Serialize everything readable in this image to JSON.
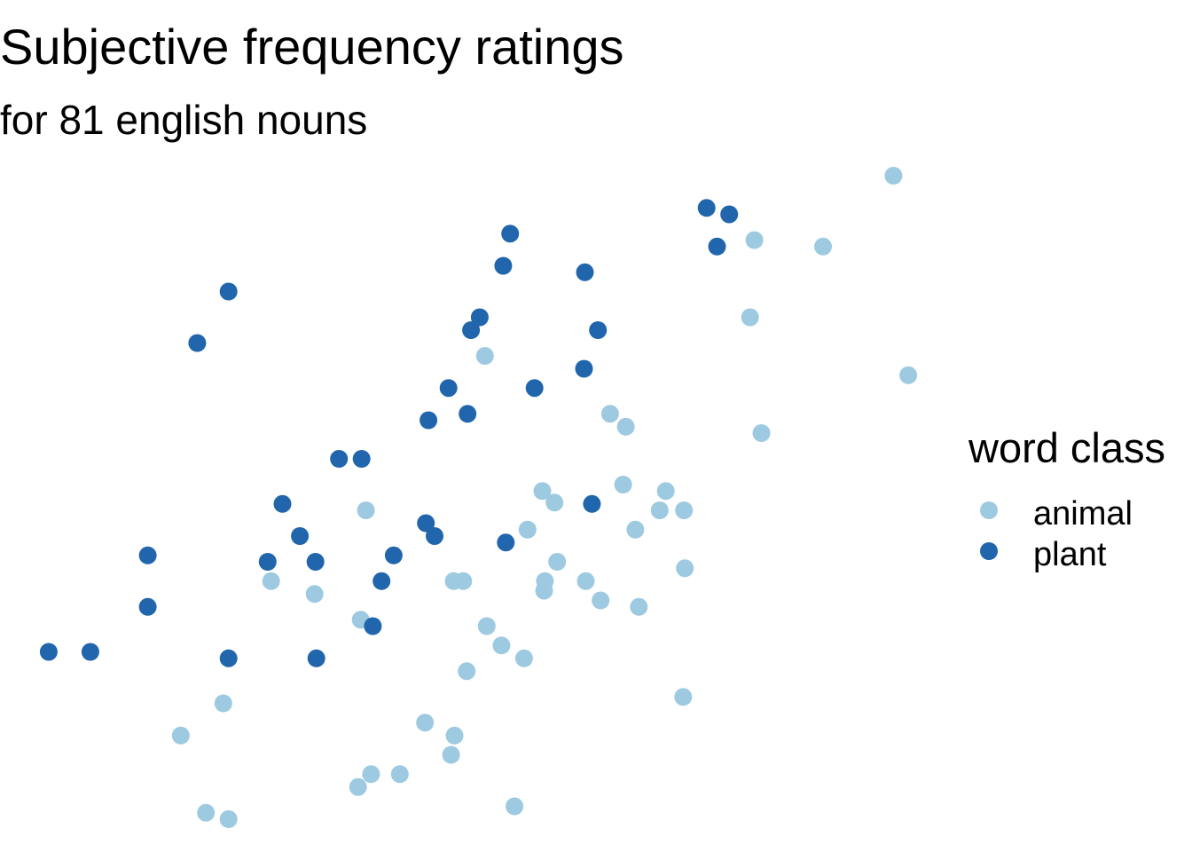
{
  "chart_data": {
    "type": "scatter",
    "title": "Subjective frequency ratings",
    "subtitle": "for 81 english nouns",
    "xlabel": "",
    "ylabel": "",
    "axes_visible": false,
    "grid": false,
    "legend": {
      "title": "word class",
      "position": "right",
      "entries": [
        "animal",
        "plant"
      ]
    },
    "colors": {
      "animal": "#9ecae1",
      "plant": "#2166ac"
    },
    "xlim": [
      0,
      1
    ],
    "ylim": [
      0,
      1
    ],
    "series": [
      {
        "name": "animal",
        "points": [
          [
            0.979,
            1.0
          ],
          [
            0.819,
            0.9
          ],
          [
            0.898,
            0.89
          ],
          [
            0.814,
            0.78
          ],
          [
            0.996,
            0.69
          ],
          [
            0.827,
            0.6
          ],
          [
            0.509,
            0.72
          ],
          [
            0.653,
            0.63
          ],
          [
            0.671,
            0.61
          ],
          [
            0.575,
            0.51
          ],
          [
            0.589,
            0.492
          ],
          [
            0.668,
            0.52
          ],
          [
            0.717,
            0.51
          ],
          [
            0.71,
            0.48
          ],
          [
            0.738,
            0.48
          ],
          [
            0.372,
            0.48
          ],
          [
            0.558,
            0.45
          ],
          [
            0.682,
            0.45
          ],
          [
            0.592,
            0.4
          ],
          [
            0.739,
            0.39
          ],
          [
            0.578,
            0.37
          ],
          [
            0.577,
            0.355
          ],
          [
            0.625,
            0.37
          ],
          [
            0.263,
            0.37
          ],
          [
            0.473,
            0.37
          ],
          [
            0.484,
            0.37
          ],
          [
            0.313,
            0.35
          ],
          [
            0.642,
            0.34
          ],
          [
            0.686,
            0.33
          ],
          [
            0.366,
            0.31
          ],
          [
            0.511,
            0.3
          ],
          [
            0.528,
            0.27
          ],
          [
            0.554,
            0.25
          ],
          [
            0.488,
            0.23
          ],
          [
            0.737,
            0.19
          ],
          [
            0.208,
            0.18
          ],
          [
            0.44,
            0.15
          ],
          [
            0.474,
            0.13
          ],
          [
            0.47,
            0.1
          ],
          [
            0.159,
            0.13
          ],
          [
            0.378,
            0.07
          ],
          [
            0.411,
            0.07
          ],
          [
            0.363,
            0.05
          ],
          [
            0.543,
            0.02
          ],
          [
            0.188,
            0.01
          ],
          [
            0.214,
            0.0
          ]
        ]
      },
      {
        "name": "plant",
        "points": [
          [
            0.764,
            0.95
          ],
          [
            0.79,
            0.94
          ],
          [
            0.776,
            0.89
          ],
          [
            0.538,
            0.91
          ],
          [
            0.53,
            0.86
          ],
          [
            0.624,
            0.85
          ],
          [
            0.214,
            0.82
          ],
          [
            0.503,
            0.78
          ],
          [
            0.493,
            0.76
          ],
          [
            0.639,
            0.76
          ],
          [
            0.178,
            0.74
          ],
          [
            0.623,
            0.7
          ],
          [
            0.467,
            0.67
          ],
          [
            0.566,
            0.67
          ],
          [
            0.489,
            0.63
          ],
          [
            0.444,
            0.62
          ],
          [
            0.341,
            0.56
          ],
          [
            0.367,
            0.56
          ],
          [
            0.276,
            0.49
          ],
          [
            0.632,
            0.49
          ],
          [
            0.441,
            0.46
          ],
          [
            0.451,
            0.44
          ],
          [
            0.296,
            0.44
          ],
          [
            0.533,
            0.43
          ],
          [
            0.121,
            0.41
          ],
          [
            0.404,
            0.41
          ],
          [
            0.259,
            0.4
          ],
          [
            0.314,
            0.4
          ],
          [
            0.39,
            0.37
          ],
          [
            0.121,
            0.33
          ],
          [
            0.38,
            0.3
          ],
          [
            0.007,
            0.26
          ],
          [
            0.055,
            0.26
          ],
          [
            0.214,
            0.25
          ],
          [
            0.315,
            0.25
          ]
        ]
      }
    ]
  }
}
